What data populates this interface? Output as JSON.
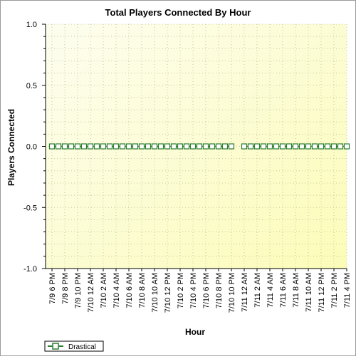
{
  "chart_data": {
    "type": "line",
    "title": "Total Players Connected By Hour",
    "xlabel": "Hour",
    "ylabel": "Players Connected",
    "ylim": [
      -1.0,
      1.0
    ],
    "y_ticks": [
      "1.0",
      "0.5",
      "0.0",
      "-0.5",
      "-1.0"
    ],
    "grid": true,
    "legend_position": "bottom-left",
    "categories": [
      "7/9 6 PM",
      "7/9 7 PM",
      "7/9 8 PM",
      "7/9 9 PM",
      "7/9 10 PM",
      "7/9 11 PM",
      "7/10 12 AM",
      "7/10 1 AM",
      "7/10 2 AM",
      "7/10 3 AM",
      "7/10 4 AM",
      "7/10 5 AM",
      "7/10 6 AM",
      "7/10 7 AM",
      "7/10 8 AM",
      "7/10 9 AM",
      "7/10 10 AM",
      "7/10 11 AM",
      "7/10 12 PM",
      "7/10 1 PM",
      "7/10 2 PM",
      "7/10 3 PM",
      "7/10 4 PM",
      "7/10 5 PM",
      "7/10 6 PM",
      "7/10 7 PM",
      "7/10 8 PM",
      "7/10 9 PM",
      "7/10 10 PM",
      "7/10 11 PM",
      "7/11 12 AM",
      "7/11 1 AM",
      "7/11 2 AM",
      "7/11 3 AM",
      "7/11 4 AM",
      "7/11 5 AM",
      "7/11 6 AM",
      "7/11 7 AM",
      "7/11 8 AM",
      "7/11 9 AM",
      "7/11 10 AM",
      "7/11 11 AM",
      "7/11 12 PM",
      "7/11 1 PM",
      "7/11 2 PM",
      "7/11 3 PM",
      "7/11 4 PM"
    ],
    "tick_labels": [
      "7/9 6 PM",
      "7/9 8 PM",
      "7/9 10 PM",
      "7/10 12 AM",
      "7/10 2 AM",
      "7/10 4 AM",
      "7/10 6 AM",
      "7/10 8 AM",
      "7/10 10 AM",
      "7/10 12 PM",
      "7/10 2 PM",
      "7/10 4 PM",
      "7/10 6 PM",
      "7/10 8 PM",
      "7/10 10 PM",
      "7/11 12 AM",
      "7/11 2 AM",
      "7/11 4 AM",
      "7/11 6 AM",
      "7/11 8 AM",
      "7/11 10 AM",
      "7/11 12 PM",
      "7/11 2 PM",
      "7/11 4 PM"
    ],
    "series": [
      {
        "name": "Drastical",
        "color": "#2e7d32",
        "values": [
          0,
          0,
          0,
          0,
          0,
          0,
          0,
          0,
          0,
          0,
          0,
          0,
          0,
          0,
          0,
          0,
          0,
          0,
          0,
          0,
          0,
          0,
          0,
          0,
          0,
          0,
          0,
          0,
          0,
          null,
          0,
          0,
          0,
          0,
          0,
          0,
          0,
          0,
          0,
          0,
          0,
          0,
          0,
          0,
          0,
          0,
          0
        ]
      }
    ],
    "plot_background": "#fdfde0"
  }
}
